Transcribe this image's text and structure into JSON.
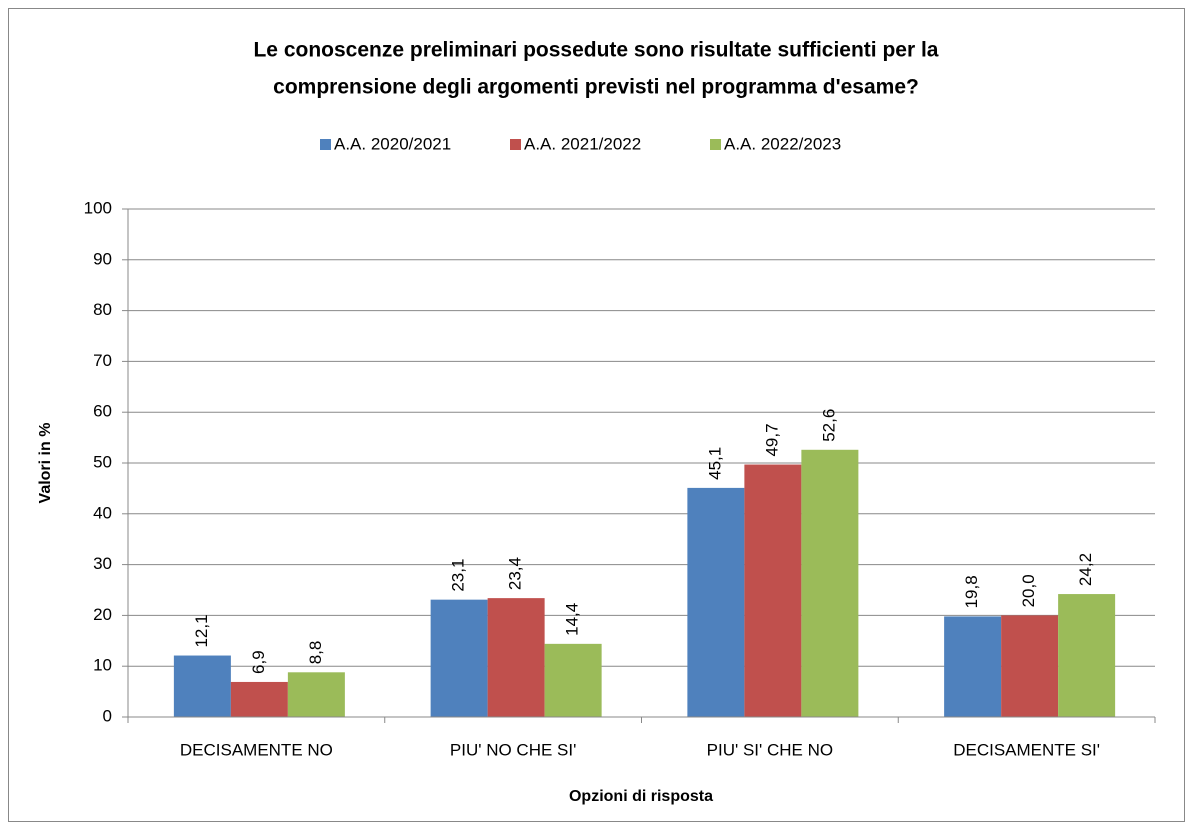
{
  "chart_data": {
    "type": "bar",
    "title": [
      "Le conoscenze preliminari possedute sono risultate sufficienti per la",
      "comprensione degli argomenti previsti nel programma d'esame?"
    ],
    "x_label": "Opzioni di risposta",
    "y_label": "Valori in %",
    "categories": [
      "DECISAMENTE NO",
      "PIU' NO CHE SI'",
      "PIU' SI' CHE NO",
      "DECISAMENTE SI'"
    ],
    "series": [
      {
        "name": "A.A. 2020/2021",
        "color": "#4f81bd",
        "values": [
          12.1,
          23.1,
          45.1,
          19.8
        ],
        "value_labels": [
          "12,1",
          "23,1",
          "45,1",
          "19,8"
        ]
      },
      {
        "name": "A.A. 2021/2022",
        "color": "#c0504d",
        "values": [
          6.9,
          23.4,
          49.7,
          20.0
        ],
        "value_labels": [
          "6,9",
          "23,4",
          "49,7",
          "20,0"
        ]
      },
      {
        "name": "A.A. 2022/2023",
        "color": "#9bbb59",
        "values": [
          8.8,
          14.4,
          52.6,
          24.2
        ],
        "value_labels": [
          "8,8",
          "14,4",
          "52,6",
          "24,2"
        ]
      }
    ],
    "ylim": [
      0,
      100
    ],
    "yticks": [
      0,
      10,
      20,
      30,
      40,
      50,
      60,
      70,
      80,
      90,
      100
    ],
    "grid": true,
    "legend": "top"
  }
}
